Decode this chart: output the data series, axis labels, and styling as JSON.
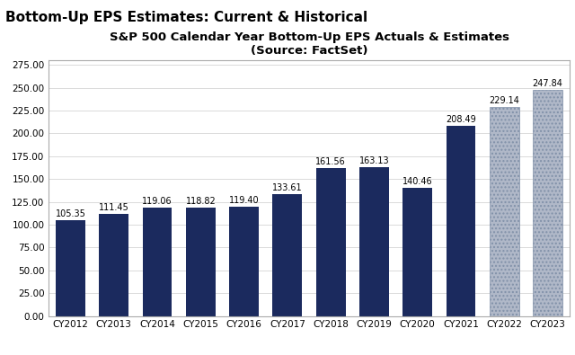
{
  "title": "S&P 500 Calendar Year Bottom-Up EPS Actuals & Estimates",
  "subtitle": "(Source: FactSet)",
  "outer_title": "Bottom-Up EPS Estimates: Current & Historical",
  "categories": [
    "CY2012",
    "CY2013",
    "CY2014",
    "CY2015",
    "CY2016",
    "CY2017",
    "CY2018",
    "CY2019",
    "CY2020",
    "CY2021",
    "CY2022",
    "CY2023"
  ],
  "values": [
    105.35,
    111.45,
    119.06,
    118.82,
    119.4,
    133.61,
    161.56,
    163.13,
    140.46,
    208.49,
    229.14,
    247.84
  ],
  "labels": [
    "105.35",
    "111.45",
    "119.06",
    "118.82",
    "119.40",
    "133.61",
    "161.56",
    "163.13",
    "140.46",
    "208.49",
    "229.14",
    "247.84"
  ],
  "solid_color": "#1B2A5E",
  "hatch_face_color": "#B0B8C8",
  "hatch_edge_color": "#8090A8",
  "hatch_pattern": "....",
  "hatch_indices": [
    10,
    11
  ],
  "ylim": [
    0,
    280
  ],
  "yticks": [
    0,
    25,
    50,
    75,
    100,
    125,
    150,
    175,
    200,
    225,
    250,
    275
  ],
  "ytick_labels": [
    "0.00",
    "25.00",
    "50.00",
    "75.00",
    "100.00",
    "125.00",
    "150.00",
    "175.00",
    "200.00",
    "225.00",
    "250.00",
    "275.00"
  ],
  "chart_bg": "#FFFFFF",
  "outer_bg": "#FFFFFF",
  "label_fontsize": 7.0,
  "title_fontsize": 9.5,
  "outer_title_fontsize": 11,
  "tick_fontsize": 7.5,
  "border_color": "#AAAAAA"
}
